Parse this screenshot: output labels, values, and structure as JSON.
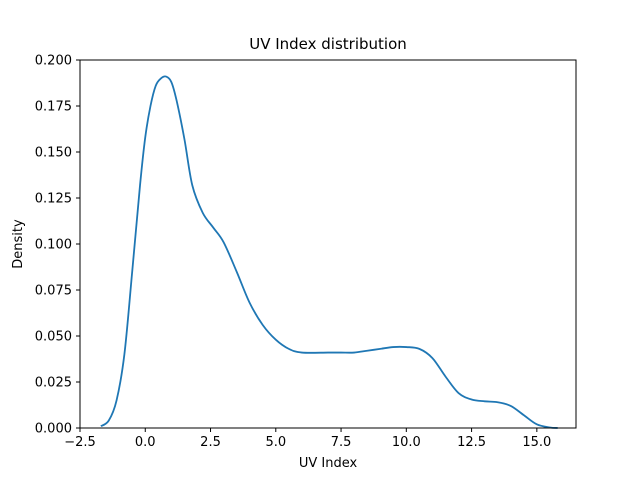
{
  "chart_data": {
    "type": "line",
    "title": "UV Index distribution",
    "xlabel": "UV Index",
    "ylabel": "Density",
    "xlim": [
      -2.5,
      16.5
    ],
    "ylim": [
      0.0,
      0.2
    ],
    "grid": false,
    "legend": "none",
    "x_ticks": [
      -2.5,
      0.0,
      2.5,
      5.0,
      7.5,
      10.0,
      12.5,
      15.0
    ],
    "x_tick_labels": [
      "−2.5",
      "0.0",
      "2.5",
      "5.0",
      "7.5",
      "10.0",
      "12.5",
      "15.0"
    ],
    "y_ticks": [
      0.0,
      0.025,
      0.05,
      0.075,
      0.1,
      0.125,
      0.15,
      0.175,
      0.2
    ],
    "y_tick_labels": [
      "0.000",
      "0.025",
      "0.050",
      "0.075",
      "0.100",
      "0.125",
      "0.150",
      "0.175",
      "0.200"
    ],
    "series": [
      {
        "color": "#1f77b4",
        "x": [
          -1.7,
          -1.4,
          -1.1,
          -0.8,
          -0.5,
          -0.2,
          0.0,
          0.2,
          0.4,
          0.6,
          0.8,
          1.0,
          1.2,
          1.5,
          1.8,
          2.2,
          2.6,
          3.0,
          3.5,
          4.0,
          4.5,
          5.0,
          5.5,
          6.0,
          7.0,
          7.5,
          8.0,
          8.5,
          9.0,
          9.5,
          10.0,
          10.5,
          11.0,
          11.5,
          12.0,
          12.5,
          13.0,
          13.5,
          14.0,
          14.5,
          15.0,
          15.5,
          15.8
        ],
        "y": [
          0.001,
          0.004,
          0.015,
          0.04,
          0.085,
          0.132,
          0.158,
          0.175,
          0.186,
          0.19,
          0.191,
          0.188,
          0.178,
          0.157,
          0.132,
          0.117,
          0.109,
          0.101,
          0.085,
          0.068,
          0.056,
          0.048,
          0.043,
          0.041,
          0.041,
          0.041,
          0.041,
          0.042,
          0.043,
          0.044,
          0.044,
          0.043,
          0.038,
          0.028,
          0.019,
          0.0155,
          0.0145,
          0.014,
          0.012,
          0.007,
          0.002,
          0.0003,
          0.0
        ]
      }
    ]
  }
}
